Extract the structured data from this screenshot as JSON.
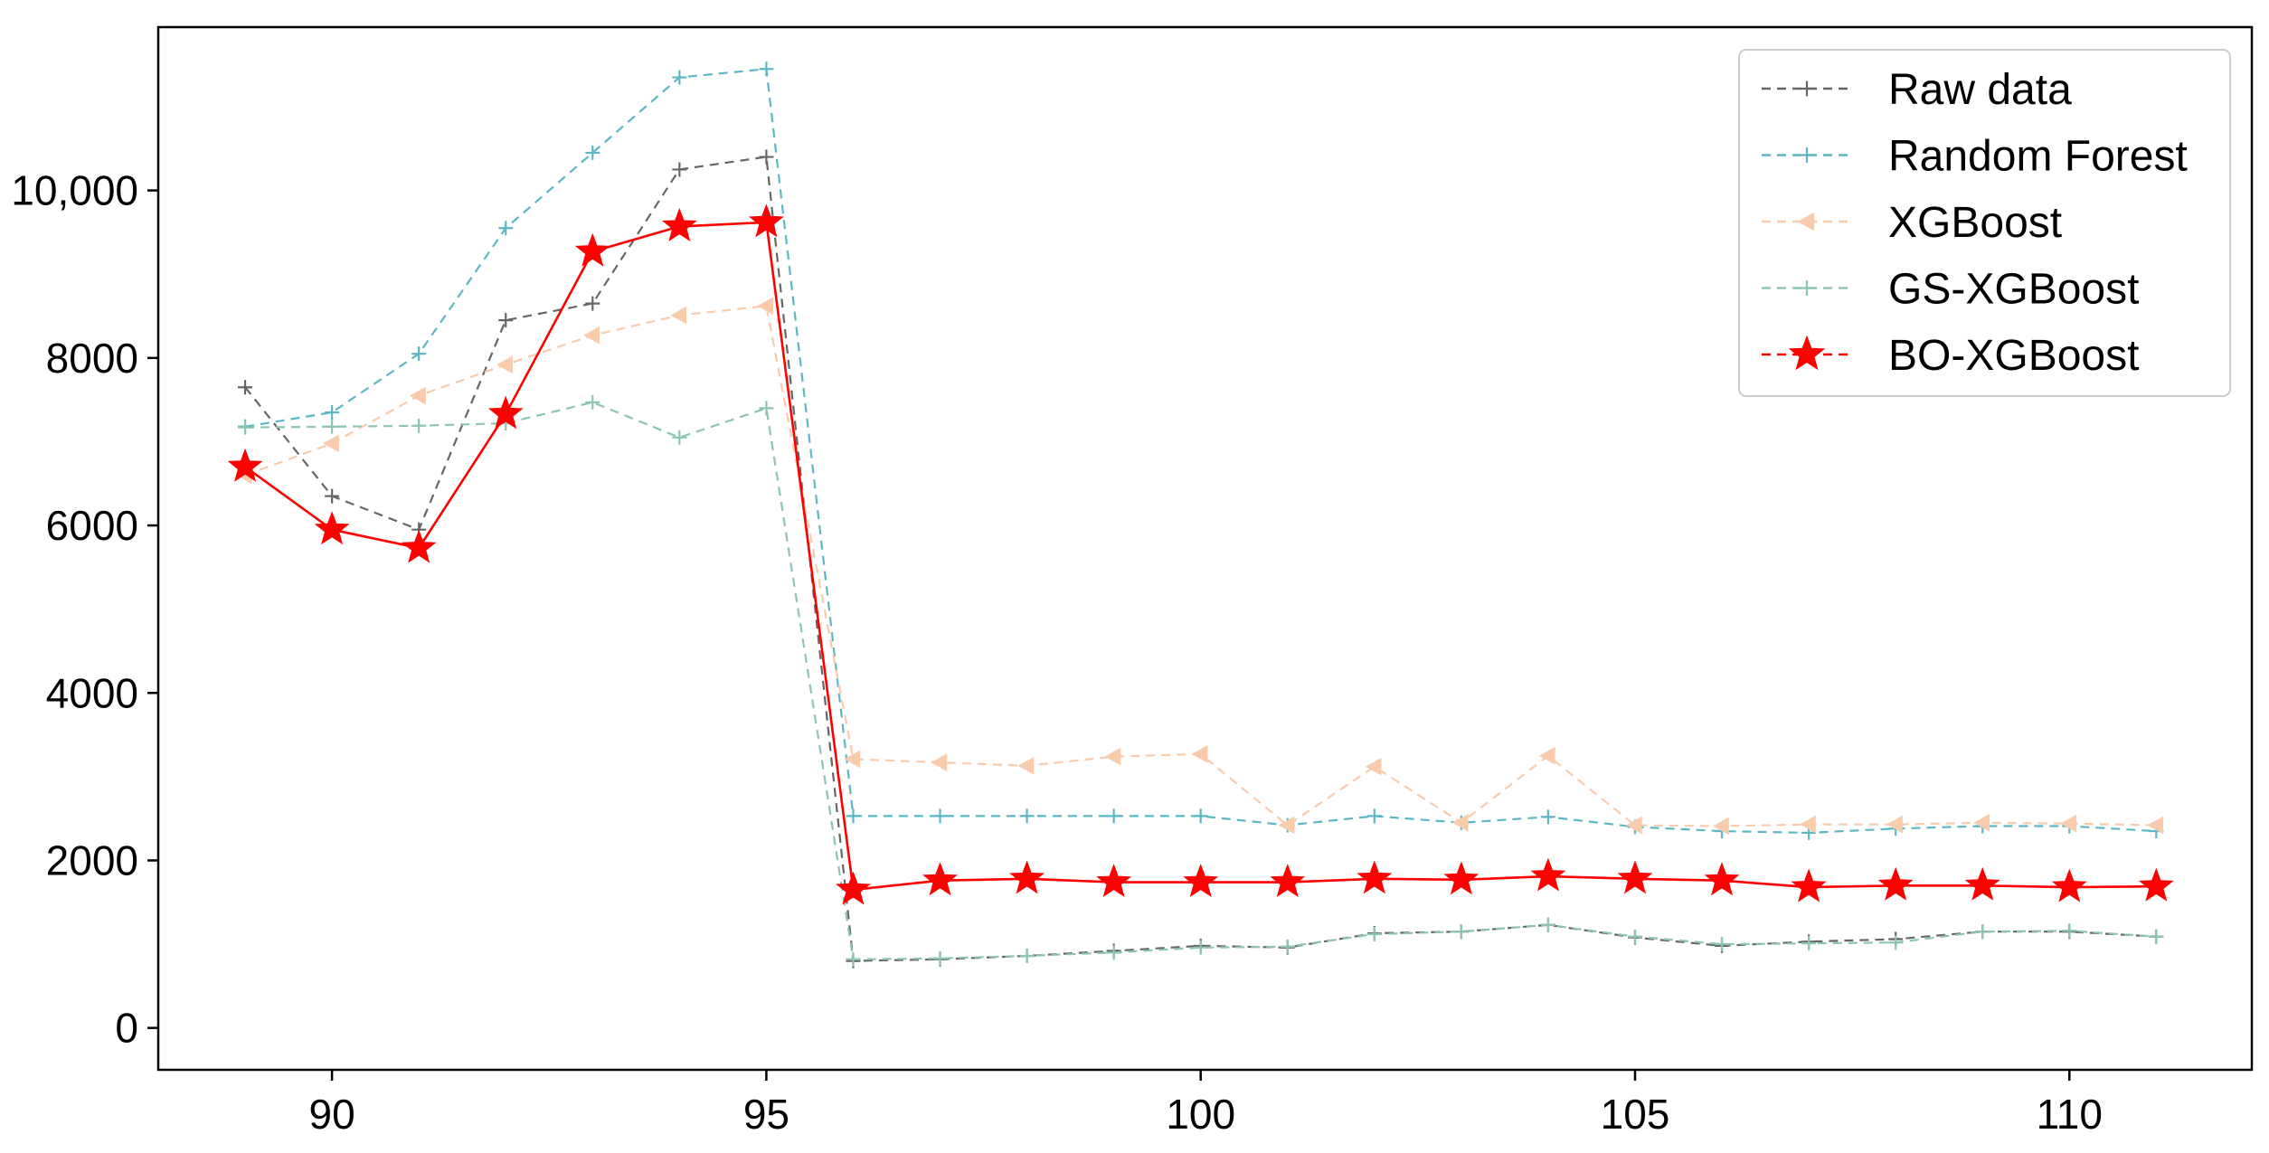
{
  "chart_data": {
    "type": "line",
    "x": [
      89,
      90,
      91,
      92,
      93,
      94,
      95,
      96,
      97,
      98,
      99,
      100,
      101,
      102,
      103,
      104,
      105,
      106,
      107,
      108,
      109,
      110,
      111
    ],
    "xlim": [
      88.0,
      112.1
    ],
    "ylim": [
      -500,
      11950
    ],
    "xticks": [
      90,
      95,
      100,
      105,
      110
    ],
    "xtick_labels": [
      "90",
      "95",
      "100",
      "105",
      "110"
    ],
    "yticks": [
      0,
      2000,
      4000,
      6000,
      8000,
      10000
    ],
    "ytick_labels": [
      "0",
      "2000",
      "4000",
      "6000",
      "8000",
      "10,000"
    ],
    "grid": false,
    "legend_position": "top-right",
    "series": [
      {
        "name": "Raw data",
        "color": "#666666",
        "style": "dashed",
        "marker": "plus-icon",
        "values": [
          7650,
          6350,
          5950,
          8450,
          8650,
          10250,
          10400,
          800,
          820,
          860,
          920,
          980,
          960,
          1130,
          1150,
          1230,
          1080,
          980,
          1030,
          1060,
          1150,
          1150,
          1090
        ]
      },
      {
        "name": "Random Forest",
        "color": "#5BB7C4",
        "style": "dashed",
        "marker": "plus-icon",
        "values": [
          7180,
          7350,
          8050,
          9550,
          10450,
          11350,
          11450,
          2530,
          2530,
          2530,
          2530,
          2530,
          2420,
          2530,
          2450,
          2520,
          2400,
          2350,
          2330,
          2380,
          2410,
          2410,
          2350
        ]
      },
      {
        "name": "XGBoost",
        "color": "#F8CBAD",
        "style": "dashed",
        "marker": "triangle-left-icon",
        "values": [
          6600,
          6980,
          7550,
          7920,
          8270,
          8510,
          8620,
          3210,
          3170,
          3130,
          3240,
          3270,
          2420,
          3120,
          2450,
          3250,
          2420,
          2410,
          2430,
          2430,
          2450,
          2440,
          2420
        ]
      },
      {
        "name": "GS-XGBoost",
        "color": "#8DC5B0",
        "style": "dashed",
        "marker": "plus-icon",
        "values": [
          7170,
          7180,
          7190,
          7220,
          7470,
          7050,
          7400,
          820,
          830,
          860,
          900,
          960,
          970,
          1120,
          1150,
          1230,
          1090,
          1000,
          1010,
          1020,
          1150,
          1160,
          1090
        ]
      },
      {
        "name": "BO-XGBoost",
        "color": "#FF0000",
        "style": "solid",
        "legend_style": "dashed",
        "marker": "star-icon",
        "values": [
          6700,
          5950,
          5730,
          7330,
          9270,
          9570,
          9620,
          1650,
          1760,
          1780,
          1740,
          1740,
          1740,
          1780,
          1770,
          1810,
          1780,
          1760,
          1680,
          1700,
          1700,
          1680,
          1690
        ]
      }
    ]
  }
}
